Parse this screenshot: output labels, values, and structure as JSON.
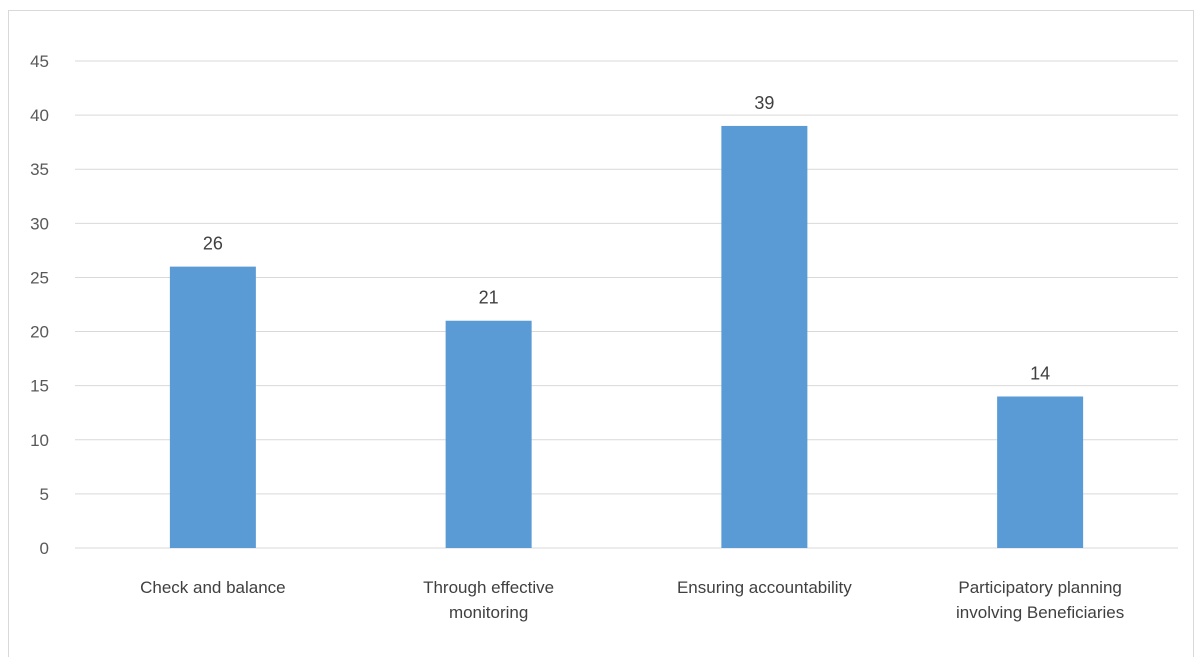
{
  "chart_data": {
    "type": "bar",
    "categories": [
      [
        "Check and balance"
      ],
      [
        "Through effective",
        "monitoring"
      ],
      [
        "Ensuring accountability"
      ],
      [
        "Participatory planning",
        "involving Beneficiaries"
      ]
    ],
    "values": [
      26,
      21,
      39,
      14
    ],
    "data_labels": [
      "26",
      "21",
      "39",
      "14"
    ],
    "ylim": [
      0,
      45
    ],
    "yticks": [
      0,
      5,
      10,
      15,
      20,
      25,
      30,
      35,
      40,
      45
    ],
    "grid": true,
    "legend": "none",
    "bar_color": "#5b9bd5"
  }
}
